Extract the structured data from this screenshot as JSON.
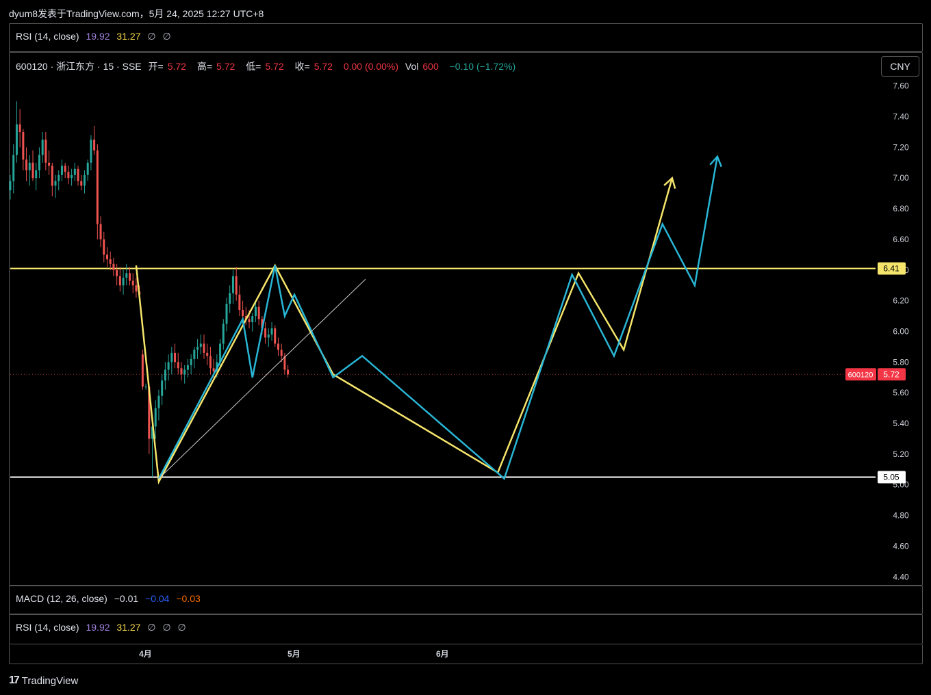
{
  "caption": "dyum8发表于TradingView.com，5月 24, 2025 12:27 UTC+8",
  "rsi_top": {
    "name": "RSI (14, close)",
    "v1": "19.92",
    "v2": "31.27",
    "n1": "∅",
    "n2": "∅"
  },
  "main_legend": {
    "symbol": "600120 · 浙江东方 · 15 · SSE",
    "open_label": "开=",
    "open": "5.72",
    "high_label": "高=",
    "high": "5.72",
    "low_label": "低=",
    "low": "5.72",
    "close_label": "收=",
    "close": "5.72",
    "change": "0.00 (0.00%)",
    "vol_label": "Vol",
    "vol": "600",
    "vol_change": "−0.10 (−1.72%)"
  },
  "currency": "CNY",
  "macd": {
    "name": "MACD (12, 26, close)",
    "v1": "−0.01",
    "v2": "−0.04",
    "v3": "−0.03"
  },
  "rsi_bottom": {
    "name": "RSI (14, close)",
    "v1": "19.92",
    "v2": "31.27",
    "n1": "∅",
    "n2": "∅",
    "n3": "∅"
  },
  "brand": "TradingView",
  "colors": {
    "up": "#26a69a",
    "down": "#ef5350",
    "yellow": "#f5e56b",
    "cyan": "#29b6d6",
    "white": "#ffffff"
  },
  "chart_data": {
    "type": "candlestick",
    "symbol": "600120",
    "y_ticks": [
      "7.60",
      "7.40",
      "7.20",
      "7.00",
      "6.80",
      "6.60",
      "6.40",
      "6.20",
      "6.00",
      "5.80",
      "5.60",
      "5.40",
      "5.20",
      "5.00",
      "4.80",
      "4.60",
      "4.40"
    ],
    "y_range": [
      4.37,
      7.67
    ],
    "x_ticks": [
      {
        "label": "4月",
        "x": 42
      },
      {
        "label": "5月",
        "x": 88
      },
      {
        "label": "6月",
        "x": 134
      }
    ],
    "x_range": [
      0,
      268
    ],
    "price_lines": [
      {
        "price": 6.41,
        "label": "6.41",
        "color": "yellow"
      },
      {
        "price": 5.05,
        "label": "5.05",
        "color": "white"
      }
    ],
    "last_price": {
      "symbol": "600120",
      "price": 5.72,
      "label": "5.72"
    },
    "candles": [
      [
        0,
        6.92,
        7.02,
        6.86,
        6.98
      ],
      [
        1,
        6.98,
        7.22,
        6.9,
        7.15
      ],
      [
        2,
        7.15,
        7.5,
        7.1,
        7.35
      ],
      [
        3,
        7.35,
        7.45,
        7.2,
        7.3
      ],
      [
        4,
        7.3,
        7.32,
        7.05,
        7.12
      ],
      [
        5,
        7.12,
        7.2,
        6.98,
        7.05
      ],
      [
        6,
        7.05,
        7.15,
        6.95,
        7.1
      ],
      [
        7,
        7.1,
        7.18,
        6.98,
        7.0
      ],
      [
        8,
        7.0,
        7.1,
        6.92,
        7.05
      ],
      [
        9,
        7.05,
        7.2,
        7.0,
        7.15
      ],
      [
        10,
        7.15,
        7.3,
        7.1,
        7.25
      ],
      [
        11,
        7.25,
        7.3,
        7.05,
        7.1
      ],
      [
        12,
        7.1,
        7.18,
        7.02,
        7.08
      ],
      [
        13,
        7.08,
        7.1,
        6.88,
        6.95
      ],
      [
        14,
        6.95,
        7.02,
        6.87,
        6.98
      ],
      [
        15,
        6.98,
        7.05,
        6.92,
        7.02
      ],
      [
        16,
        7.02,
        7.12,
        6.98,
        7.08
      ],
      [
        17,
        7.08,
        7.1,
        7.0,
        7.04
      ],
      [
        18,
        7.04,
        7.08,
        6.96,
        7.0
      ],
      [
        19,
        7.0,
        7.06,
        6.95,
        7.02
      ],
      [
        20,
        7.02,
        7.1,
        6.98,
        7.06
      ],
      [
        21,
        7.06,
        7.08,
        6.95,
        6.98
      ],
      [
        22,
        6.98,
        7.02,
        6.92,
        6.95
      ],
      [
        23,
        6.95,
        7.05,
        6.9,
        7.02
      ],
      [
        24,
        7.02,
        7.12,
        6.98,
        7.1
      ],
      [
        25,
        7.1,
        7.28,
        7.05,
        7.25
      ],
      [
        26,
        7.25,
        7.34,
        7.15,
        7.18
      ],
      [
        27,
        7.18,
        7.22,
        6.6,
        6.7
      ],
      [
        28,
        6.7,
        6.75,
        6.55,
        6.6
      ],
      [
        29,
        6.6,
        6.65,
        6.45,
        6.5
      ],
      [
        30,
        6.5,
        6.55,
        6.42,
        6.47
      ],
      [
        31,
        6.47,
        6.52,
        6.4,
        6.44
      ],
      [
        32,
        6.44,
        6.48,
        6.36,
        6.4
      ],
      [
        33,
        6.4,
        6.44,
        6.3,
        6.36
      ],
      [
        34,
        6.36,
        6.42,
        6.26,
        6.3
      ],
      [
        35,
        6.3,
        6.4,
        6.24,
        6.35
      ],
      [
        36,
        6.35,
        6.44,
        6.3,
        6.38
      ],
      [
        37,
        6.38,
        6.42,
        6.3,
        6.33
      ],
      [
        38,
        6.33,
        6.38,
        6.25,
        6.3
      ],
      [
        39,
        6.3,
        6.35,
        6.22,
        6.26
      ],
      [
        40,
        6.26,
        6.3,
        6.2,
        6.24
      ],
      [
        41,
        5.85,
        5.88,
        5.62,
        5.64
      ],
      [
        42,
        5.64,
        5.66,
        5.62,
        5.64
      ],
      [
        43,
        5.64,
        5.66,
        5.2,
        5.3
      ],
      [
        44,
        5.3,
        5.42,
        5.05,
        5.38
      ],
      [
        45,
        5.38,
        5.55,
        5.3,
        5.5
      ],
      [
        46,
        5.5,
        5.62,
        5.42,
        5.58
      ],
      [
        47,
        5.58,
        5.72,
        5.52,
        5.68
      ],
      [
        48,
        5.68,
        5.8,
        5.62,
        5.75
      ],
      [
        49,
        5.75,
        5.85,
        5.68,
        5.8
      ],
      [
        50,
        5.8,
        5.9,
        5.72,
        5.86
      ],
      [
        51,
        5.86,
        5.92,
        5.76,
        5.8
      ],
      [
        52,
        5.8,
        5.86,
        5.72,
        5.76
      ],
      [
        53,
        5.76,
        5.8,
        5.68,
        5.72
      ],
      [
        54,
        5.72,
        5.78,
        5.66,
        5.75
      ],
      [
        55,
        5.75,
        5.82,
        5.7,
        5.78
      ],
      [
        56,
        5.78,
        5.85,
        5.72,
        5.82
      ],
      [
        57,
        5.82,
        5.9,
        5.76,
        5.88
      ],
      [
        58,
        5.88,
        5.95,
        5.82,
        5.9
      ],
      [
        59,
        5.9,
        5.98,
        5.85,
        5.92
      ],
      [
        60,
        5.92,
        5.98,
        5.82,
        5.86
      ],
      [
        61,
        5.86,
        5.92,
        5.78,
        5.84
      ],
      [
        62,
        5.84,
        5.9,
        5.72,
        5.76
      ],
      [
        63,
        5.76,
        5.82,
        5.7,
        5.74
      ],
      [
        64,
        5.74,
        5.85,
        5.7,
        5.8
      ],
      [
        65,
        5.8,
        5.95,
        5.76,
        5.92
      ],
      [
        66,
        5.92,
        6.08,
        5.88,
        6.05
      ],
      [
        67,
        6.05,
        6.22,
        6.0,
        6.18
      ],
      [
        68,
        6.18,
        6.3,
        6.12,
        6.25
      ],
      [
        69,
        6.25,
        6.4,
        6.18,
        6.36
      ],
      [
        70,
        6.36,
        6.42,
        6.2,
        6.24
      ],
      [
        71,
        6.24,
        6.3,
        6.1,
        6.14
      ],
      [
        72,
        6.14,
        6.2,
        6.05,
        6.1
      ],
      [
        73,
        6.1,
        6.16,
        6.04,
        6.08
      ],
      [
        74,
        6.08,
        6.14,
        6.02,
        6.06
      ],
      [
        75,
        6.06,
        6.12,
        6.0,
        6.1
      ],
      [
        76,
        6.1,
        6.2,
        6.06,
        6.16
      ],
      [
        77,
        6.16,
        6.2,
        6.04,
        6.08
      ],
      [
        78,
        6.08,
        6.1,
        5.98,
        6.02
      ],
      [
        79,
        6.02,
        6.06,
        5.92,
        5.96
      ],
      [
        80,
        5.96,
        6.02,
        5.9,
        5.98
      ],
      [
        81,
        5.98,
        6.06,
        5.94,
        6.02
      ],
      [
        82,
        6.02,
        6.04,
        5.9,
        5.92
      ],
      [
        83,
        5.92,
        5.96,
        5.84,
        5.88
      ],
      [
        84,
        5.88,
        5.92,
        5.8,
        5.84
      ],
      [
        85,
        5.84,
        5.86,
        5.72,
        5.75
      ],
      [
        86,
        5.75,
        5.78,
        5.7,
        5.72
      ]
    ],
    "drawings": [
      {
        "color": "yellow",
        "points": [
          [
            39,
            6.43
          ],
          [
            46,
            5.02
          ],
          [
            82,
            6.43
          ],
          [
            100,
            5.72
          ],
          [
            151,
            5.08
          ],
          [
            176,
            6.38
          ],
          [
            190,
            5.88
          ],
          [
            205,
            7.0
          ]
        ]
      },
      {
        "color": "cyan",
        "points": [
          [
            46,
            5.04
          ],
          [
            72,
            6.08
          ],
          [
            75,
            5.7
          ],
          [
            82,
            6.43
          ],
          [
            85,
            6.1
          ],
          [
            88,
            6.24
          ],
          [
            100,
            5.7
          ],
          [
            109,
            5.84
          ],
          [
            153,
            5.04
          ],
          [
            174,
            6.37
          ],
          [
            187,
            5.84
          ],
          [
            202,
            6.7
          ],
          [
            212,
            6.3
          ],
          [
            219,
            7.14
          ]
        ]
      },
      {
        "color": "white-thin",
        "points": [
          [
            46,
            5.04
          ],
          [
            110,
            6.34
          ]
        ]
      }
    ]
  }
}
